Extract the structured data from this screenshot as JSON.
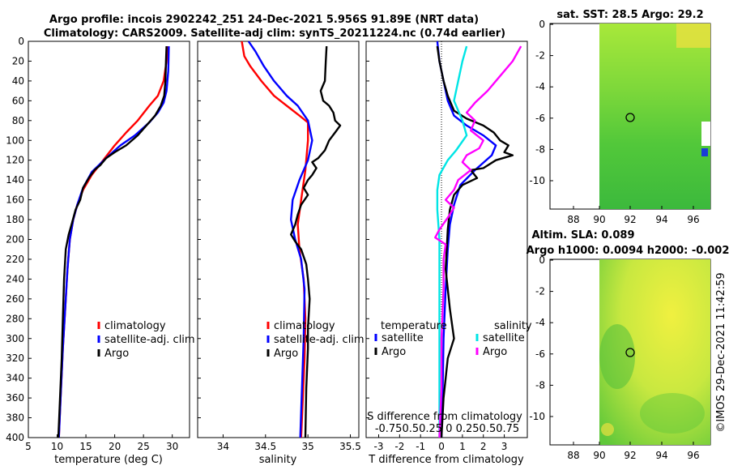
{
  "header": {
    "title_line1": "Argo profile: incois 2902242_251 24-Dec-2021 5.956S 91.89E (NRT data)",
    "title_line2": "Climatology: CARS2009. Satellite-adj clim: synTS_20211224.nc (0.74d earlier)"
  },
  "colors": {
    "climatology": "#ff0000",
    "satellite": "#0000ff",
    "argo": "#000000",
    "sat_salinity": "#00e5e5",
    "argo_salinity": "#ff00ff"
  },
  "chart_data": [
    {
      "name": "temperature-panel",
      "type": "line",
      "xlabel": "temperature (deg C)",
      "ylabel": "",
      "xlim": [
        5,
        33
      ],
      "ylim": [
        400,
        0
      ],
      "xticks": [
        5,
        10,
        15,
        20,
        25,
        30
      ],
      "yticks": [
        0,
        20,
        40,
        60,
        80,
        100,
        120,
        140,
        160,
        180,
        200,
        220,
        240,
        260,
        280,
        300,
        320,
        340,
        360,
        380,
        400
      ],
      "legend": [
        "climatology",
        "satellite-adj. clim",
        "Argo"
      ],
      "series": [
        {
          "name": "climatology",
          "color": "#ff0000",
          "points": [
            [
              29.2,
              5
            ],
            [
              29.0,
              20
            ],
            [
              28.5,
              40
            ],
            [
              27.5,
              55
            ],
            [
              26,
              65
            ],
            [
              24,
              80
            ],
            [
              22,
              92
            ],
            [
              20,
              105
            ],
            [
              18,
              120
            ],
            [
              16,
              135
            ],
            [
              14.5,
              150
            ],
            [
              13.5,
              165
            ],
            [
              12.8,
              180
            ],
            [
              12.2,
              200
            ],
            [
              11.8,
              230
            ],
            [
              11.4,
              270
            ],
            [
              11.0,
              310
            ],
            [
              10.6,
              360
            ],
            [
              10.3,
              400
            ]
          ]
        },
        {
          "name": "satellite-adj. clim",
          "color": "#0000ff",
          "points": [
            [
              29.4,
              5
            ],
            [
              29.3,
              30
            ],
            [
              29.0,
              50
            ],
            [
              28.5,
              62
            ],
            [
              27.5,
              72
            ],
            [
              26,
              82
            ],
            [
              23.5,
              95
            ],
            [
              21,
              105
            ],
            [
              18.5,
              118
            ],
            [
              16,
              132
            ],
            [
              14.5,
              148
            ],
            [
              13.5,
              165
            ],
            [
              12.8,
              180
            ],
            [
              12.2,
              200
            ],
            [
              11.8,
              230
            ],
            [
              11.4,
              270
            ],
            [
              11.0,
              310
            ],
            [
              10.6,
              360
            ],
            [
              10.3,
              400
            ]
          ]
        },
        {
          "name": "Argo",
          "color": "#000000",
          "points": [
            [
              29.0,
              5
            ],
            [
              28.9,
              20
            ],
            [
              28.8,
              40
            ],
            [
              28.6,
              55
            ],
            [
              28.0,
              65
            ],
            [
              27.0,
              75
            ],
            [
              25.5,
              85
            ],
            [
              24,
              95
            ],
            [
              22,
              105
            ],
            [
              20,
              112
            ],
            [
              18.5,
              118
            ],
            [
              17.5,
              125
            ],
            [
              16.5,
              130
            ],
            [
              15.5,
              138
            ],
            [
              14.5,
              148
            ],
            [
              14,
              160
            ],
            [
              13.2,
              170
            ],
            [
              12.5,
              185
            ],
            [
              12.0,
              195
            ],
            [
              11.5,
              210
            ],
            [
              11.2,
              240
            ],
            [
              11.0,
              280
            ],
            [
              10.8,
              320
            ],
            [
              10.5,
              360
            ],
            [
              10.2,
              400
            ]
          ]
        }
      ]
    },
    {
      "name": "salinity-panel",
      "type": "line",
      "xlabel": "salinity",
      "ylabel": "",
      "xlim": [
        33.7,
        35.6
      ],
      "ylim": [
        400,
        0
      ],
      "xticks": [
        34,
        34.5,
        35,
        35.5
      ],
      "xtick_labels": [
        "34",
        "34.5",
        "35",
        "35.5"
      ],
      "legend": [
        "climatology",
        "satellite-adj. clim",
        "Argo"
      ],
      "series": [
        {
          "name": "climatology",
          "color": "#ff0000",
          "points": [
            [
              34.22,
              0
            ],
            [
              34.25,
              15
            ],
            [
              34.32,
              25
            ],
            [
              34.45,
              40
            ],
            [
              34.6,
              55
            ],
            [
              34.75,
              65
            ],
            [
              34.9,
              75
            ],
            [
              35.0,
              82
            ],
            [
              35.0,
              100
            ],
            [
              34.97,
              130
            ],
            [
              34.92,
              160
            ],
            [
              34.88,
              185
            ],
            [
              34.9,
              210
            ],
            [
              34.95,
              240
            ],
            [
              34.97,
              280
            ],
            [
              34.96,
              320
            ],
            [
              34.94,
              360
            ],
            [
              34.92,
              400
            ]
          ]
        },
        {
          "name": "satellite-adj. clim",
          "color": "#0000ff",
          "points": [
            [
              34.3,
              0
            ],
            [
              34.38,
              10
            ],
            [
              34.48,
              25
            ],
            [
              34.6,
              40
            ],
            [
              34.75,
              55
            ],
            [
              34.88,
              65
            ],
            [
              35.0,
              80
            ],
            [
              35.05,
              100
            ],
            [
              35.0,
              120
            ],
            [
              34.9,
              140
            ],
            [
              34.82,
              160
            ],
            [
              34.8,
              180
            ],
            [
              34.85,
              200
            ],
            [
              34.92,
              220
            ],
            [
              34.96,
              250
            ],
            [
              34.95,
              300
            ],
            [
              34.93,
              350
            ],
            [
              34.91,
              400
            ]
          ]
        },
        {
          "name": "Argo",
          "color": "#000000",
          "points": [
            [
              35.22,
              5
            ],
            [
              35.21,
              20
            ],
            [
              35.2,
              40
            ],
            [
              35.15,
              50
            ],
            [
              35.18,
              60
            ],
            [
              35.25,
              65
            ],
            [
              35.3,
              72
            ],
            [
              35.32,
              80
            ],
            [
              35.38,
              85
            ],
            [
              35.32,
              92
            ],
            [
              35.25,
              100
            ],
            [
              35.2,
              110
            ],
            [
              35.12,
              118
            ],
            [
              35.05,
              122
            ],
            [
              35.1,
              128
            ],
            [
              35.05,
              135
            ],
            [
              35.0,
              140
            ],
            [
              34.95,
              148
            ],
            [
              35.0,
              155
            ],
            [
              34.92,
              165
            ],
            [
              34.88,
              175
            ],
            [
              34.85,
              185
            ],
            [
              34.8,
              195
            ],
            [
              34.85,
              202
            ],
            [
              34.92,
              210
            ],
            [
              34.98,
              225
            ],
            [
              35.0,
              240
            ],
            [
              35.02,
              260
            ],
            [
              35.0,
              290
            ],
            [
              35.0,
              310
            ],
            [
              34.98,
              350
            ],
            [
              34.97,
              400
            ]
          ]
        }
      ]
    },
    {
      "name": "difference-panel",
      "type": "line",
      "xlabel": "T difference from climatology",
      "top_label": "S difference from climatology",
      "xlim": [
        -3.6,
        4.1
      ],
      "ylim": [
        400,
        0
      ],
      "xticks": [
        -3,
        -2,
        -1,
        0,
        1,
        2,
        3
      ],
      "top_ticks": "-0.750.50.25  0  0.250.50.75",
      "legend_temp_title": "temperature",
      "legend_sal_title": "salinity",
      "legend": [
        "satellite",
        "Argo",
        "satellite",
        "Argo"
      ],
      "series": [
        {
          "name": "T satellite",
          "color": "#0000ff",
          "points": [
            [
              -0.2,
              0
            ],
            [
              -0.1,
              20
            ],
            [
              0.1,
              40
            ],
            [
              0.3,
              60
            ],
            [
              0.6,
              75
            ],
            [
              1.2,
              85
            ],
            [
              2.0,
              95
            ],
            [
              2.6,
              105
            ],
            [
              2.4,
              115
            ],
            [
              1.6,
              130
            ],
            [
              0.9,
              145
            ],
            [
              0.6,
              165
            ],
            [
              0.4,
              185
            ],
            [
              0.3,
              210
            ],
            [
              0.2,
              250
            ],
            [
              0.1,
              300
            ],
            [
              0.05,
              360
            ],
            [
              0.0,
              400
            ]
          ]
        },
        {
          "name": "T Argo",
          "color": "#000000",
          "points": [
            [
              -0.2,
              5
            ],
            [
              -0.1,
              20
            ],
            [
              0.1,
              40
            ],
            [
              0.3,
              55
            ],
            [
              0.6,
              70
            ],
            [
              1.2,
              78
            ],
            [
              2.0,
              85
            ],
            [
              2.5,
              92
            ],
            [
              2.8,
              100
            ],
            [
              3.2,
              105
            ],
            [
              3.0,
              112
            ],
            [
              3.4,
              115
            ],
            [
              2.6,
              120
            ],
            [
              2.0,
              128
            ],
            [
              1.4,
              130
            ],
            [
              1.7,
              138
            ],
            [
              1.0,
              145
            ],
            [
              0.6,
              155
            ],
            [
              0.4,
              170
            ],
            [
              0.3,
              190
            ],
            [
              0.2,
              230
            ],
            [
              0.4,
              270
            ],
            [
              0.6,
              300
            ],
            [
              0.3,
              320
            ],
            [
              0.1,
              360
            ],
            [
              0.0,
              400
            ]
          ]
        },
        {
          "name": "S satellite",
          "color": "#00e5e5",
          "points": [
            [
              1.2,
              5
            ],
            [
              1.0,
              20
            ],
            [
              0.8,
              40
            ],
            [
              0.6,
              60
            ],
            [
              1.0,
              80
            ],
            [
              1.2,
              95
            ],
            [
              0.7,
              110
            ],
            [
              0.3,
              120
            ],
            [
              -0.1,
              135
            ],
            [
              -0.2,
              150
            ],
            [
              -0.2,
              170
            ],
            [
              -0.1,
              200
            ],
            [
              -0.1,
              240
            ],
            [
              -0.1,
              300
            ],
            [
              -0.1,
              350
            ],
            [
              -0.1,
              400
            ]
          ]
        },
        {
          "name": "S Argo",
          "color": "#ff00ff",
          "points": [
            [
              3.8,
              5
            ],
            [
              3.4,
              20
            ],
            [
              2.8,
              35
            ],
            [
              2.2,
              50
            ],
            [
              1.6,
              62
            ],
            [
              1.2,
              72
            ],
            [
              1.6,
              80
            ],
            [
              1.4,
              90
            ],
            [
              2.0,
              100
            ],
            [
              1.8,
              108
            ],
            [
              1.2,
              115
            ],
            [
              1.0,
              122
            ],
            [
              1.4,
              130
            ],
            [
              0.8,
              140
            ],
            [
              0.6,
              150
            ],
            [
              0.2,
              160
            ],
            [
              0.6,
              168
            ],
            [
              0.3,
              178
            ],
            [
              -0.1,
              190
            ],
            [
              -0.3,
              198
            ],
            [
              0.2,
              205
            ],
            [
              0.1,
              220
            ],
            [
              0.1,
              250
            ],
            [
              0.0,
              300
            ],
            [
              0.0,
              350
            ],
            [
              -0.1,
              400
            ]
          ]
        }
      ]
    }
  ],
  "maps": {
    "sst": {
      "title": "sat. SST: 28.5 Argo: 29.2",
      "xticks": [
        "88",
        "90",
        "92",
        "94",
        "96"
      ],
      "yticks": [
        "0",
        "-2",
        "-4",
        "-6",
        "-8",
        "-10"
      ],
      "marker_lon": 91.89,
      "marker_lat": -5.956
    },
    "sla": {
      "title_line1": "Altim. SLA: 0.089",
      "title_line2": "Argo h1000: 0.0094 h2000: -0.002",
      "xticks": [
        "88",
        "90",
        "92",
        "94",
        "96"
      ],
      "yticks": [
        "0",
        "-2",
        "-4",
        "-6",
        "-8",
        "-10"
      ],
      "marker_lon": 91.89,
      "marker_lat": -5.956
    }
  },
  "footer": {
    "credit": "©IMOS 29-Dec-2021 11:42:59"
  }
}
